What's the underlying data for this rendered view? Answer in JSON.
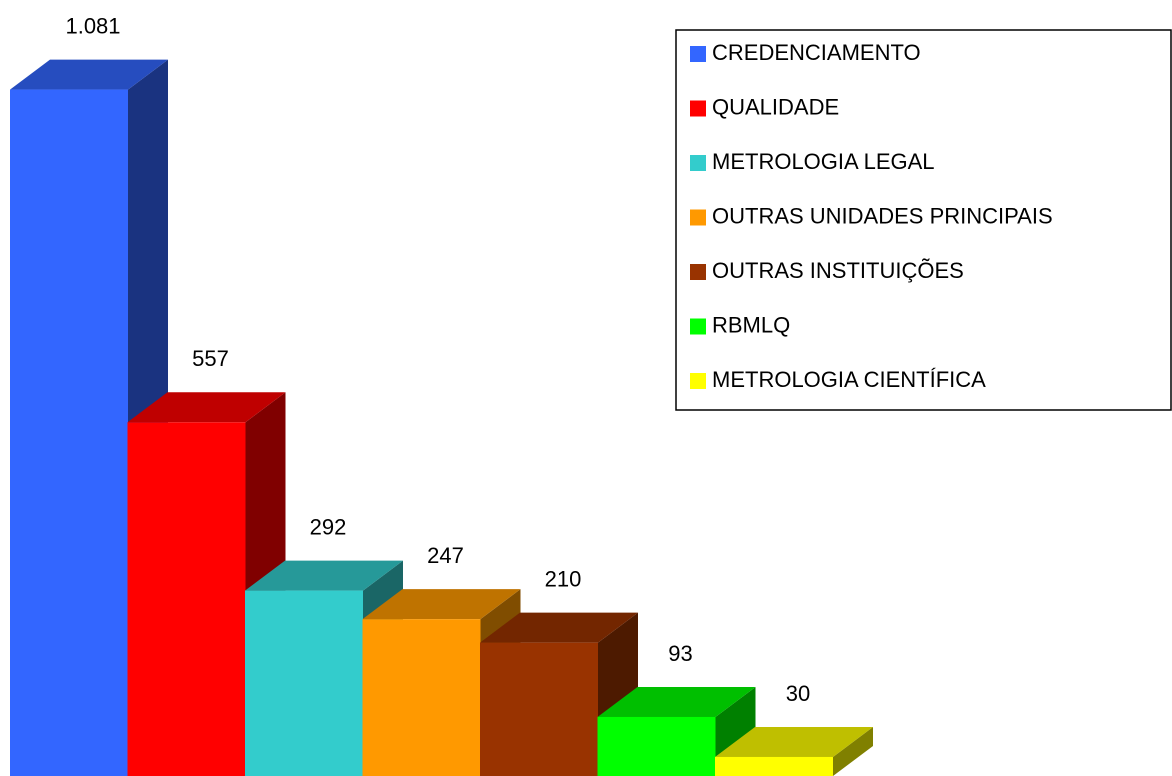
{
  "chart_data": {
    "type": "bar3d",
    "series": [
      {
        "name": "CREDENCIAMENTO",
        "color": "#3366ff",
        "values": [
          1081
        ],
        "value_labels": [
          "1.081"
        ]
      },
      {
        "name": "QUALIDADE",
        "color": "#ff0000",
        "values": [
          557
        ]
      },
      {
        "name": "METROLOGIA LEGAL",
        "color": "#33cccc",
        "values": [
          292
        ]
      },
      {
        "name": "OUTRAS UNIDADES PRINCIPAIS",
        "color": "#ff9900",
        "values": [
          247
        ]
      },
      {
        "name": "OUTRAS INSTITUIÇÕES",
        "color": "#993300",
        "values": [
          210
        ]
      },
      {
        "name": "RBMLQ",
        "color": "#00ff00",
        "values": [
          93
        ]
      },
      {
        "name": "METROLOGIA CIENTÍFICA",
        "color": "#ffff00",
        "values": [
          30
        ]
      }
    ],
    "ylim": [
      0,
      1200
    ],
    "legend": "upper right"
  }
}
